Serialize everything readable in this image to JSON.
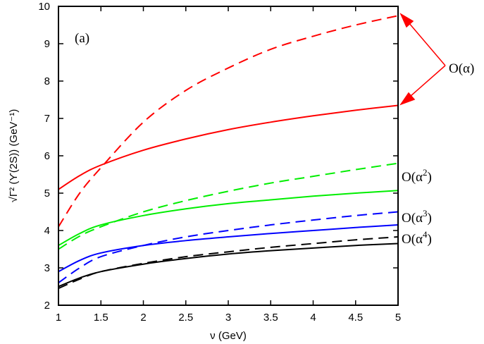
{
  "chart_data": {
    "type": "line",
    "panel_label": "(a)",
    "xlabel": "ν (GeV)",
    "ylabel": "√Γ² (ϒ(2S)) (GeV⁻¹)",
    "xlim": [
      1,
      5
    ],
    "ylim": [
      2,
      10
    ],
    "xticks": [
      "1",
      "1.5",
      "2",
      "2.5",
      "3",
      "3.5",
      "4",
      "4.5",
      "5"
    ],
    "yticks": [
      "2",
      "3",
      "4",
      "5",
      "6",
      "7",
      "8",
      "9",
      "10"
    ],
    "grid": false,
    "x": [
      1,
      1.25,
      1.5,
      2,
      2.5,
      3,
      3.5,
      4,
      4.5,
      5
    ],
    "series": [
      {
        "color": "#ff0000",
        "dash": true,
        "values": [
          4.1,
          5.0,
          5.68,
          6.9,
          7.75,
          8.35,
          8.85,
          9.2,
          9.5,
          9.75
        ]
      },
      {
        "color": "#ff0000",
        "dash": false,
        "values": [
          5.1,
          5.47,
          5.75,
          6.15,
          6.45,
          6.7,
          6.9,
          7.07,
          7.22,
          7.35
        ]
      },
      {
        "color": "#00ee00",
        "dash": true,
        "values": [
          3.5,
          3.85,
          4.1,
          4.5,
          4.8,
          5.05,
          5.27,
          5.45,
          5.63,
          5.8
        ]
      },
      {
        "color": "#00ee00",
        "dash": false,
        "values": [
          3.6,
          3.92,
          4.15,
          4.4,
          4.58,
          4.72,
          4.82,
          4.92,
          5.0,
          5.07
        ]
      },
      {
        "color": "#0000ff",
        "dash": true,
        "values": [
          2.6,
          3.0,
          3.3,
          3.6,
          3.83,
          4.0,
          4.15,
          4.28,
          4.4,
          4.5
        ]
      },
      {
        "color": "#0000ff",
        "dash": false,
        "values": [
          2.9,
          3.2,
          3.4,
          3.6,
          3.73,
          3.83,
          3.92,
          4.0,
          4.08,
          4.15
        ]
      },
      {
        "color": "#000000",
        "dash": true,
        "values": [
          2.45,
          2.7,
          2.9,
          3.12,
          3.3,
          3.43,
          3.55,
          3.65,
          3.75,
          3.83
        ]
      },
      {
        "color": "#000000",
        "dash": false,
        "values": [
          2.5,
          2.73,
          2.9,
          3.1,
          3.25,
          3.37,
          3.46,
          3.53,
          3.6,
          3.65
        ]
      }
    ],
    "annotations": [
      {
        "base": "O(α)",
        "sup": ""
      },
      {
        "base": "O(α",
        "sup": "2"
      },
      {
        "base": "O(α",
        "sup": "3"
      },
      {
        "base": "O(α",
        "sup": "4"
      }
    ]
  }
}
